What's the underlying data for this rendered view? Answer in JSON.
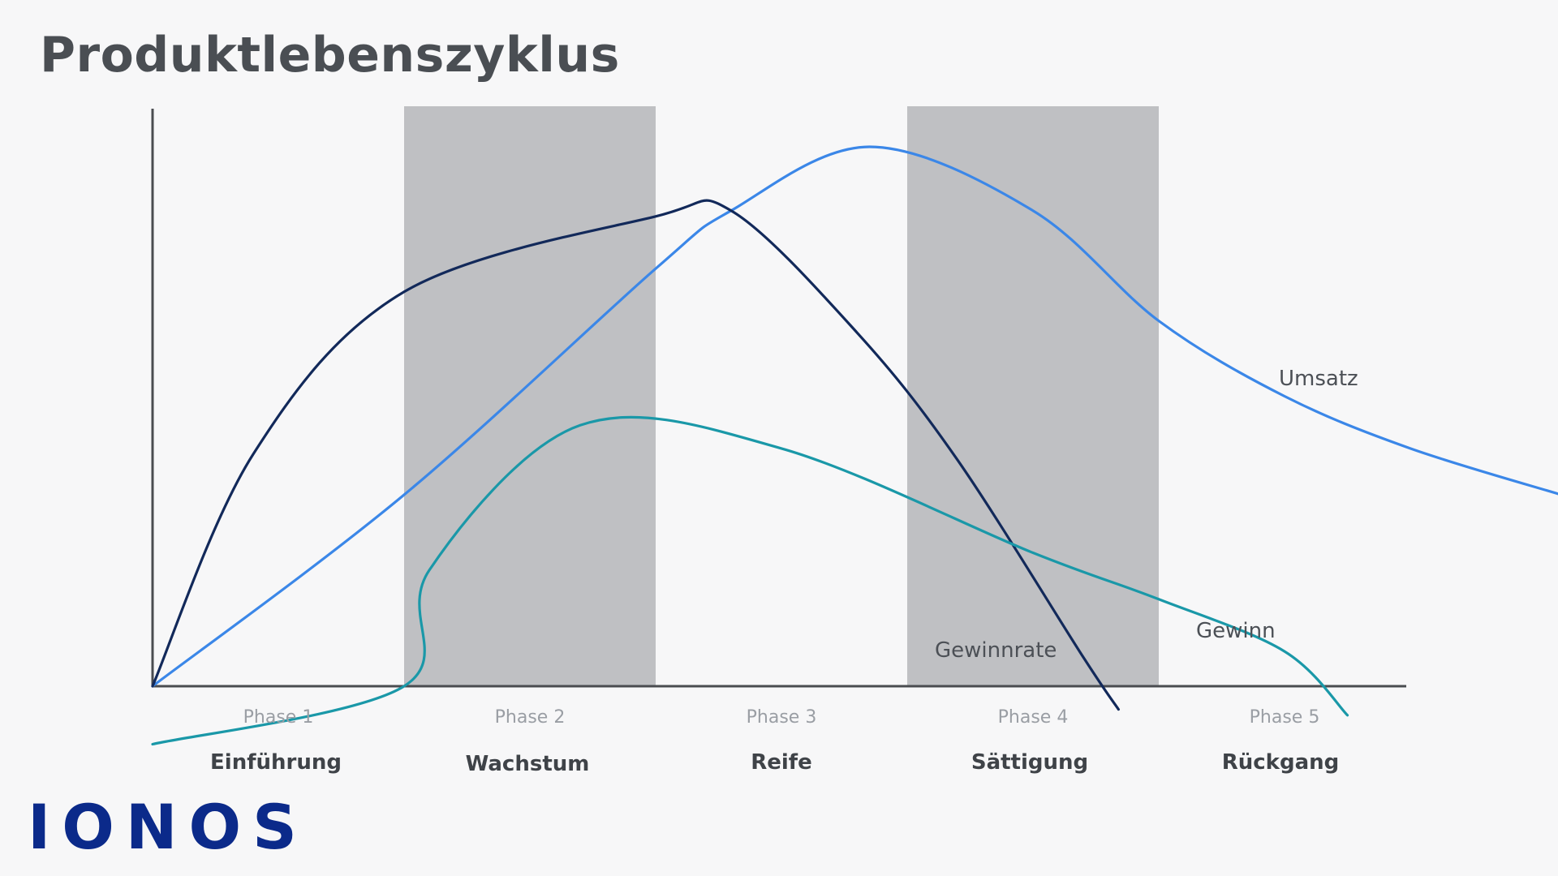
{
  "chart_data": {
    "type": "line",
    "title": "Produktlebenszyklus",
    "xlabel": "",
    "ylabel": "",
    "grid": false,
    "legend": "none",
    "x_range": [
      0,
      5
    ],
    "y_range": [
      -0.1,
      1
    ],
    "phases": [
      {
        "label": "Phase 1",
        "name": "Einführung",
        "shaded": false
      },
      {
        "label": "Phase 2",
        "name": "Wachstum",
        "shaded": true
      },
      {
        "label": "Phase 3",
        "name": "Reife",
        "shaded": false
      },
      {
        "label": "Phase 4",
        "name": "Sättigung",
        "shaded": true
      },
      {
        "label": "Phase 5",
        "name": "Rückgang",
        "shaded": false
      }
    ],
    "series": [
      {
        "name": "Umsatz",
        "color": "#3b87e8",
        "points": [
          [
            0,
            0
          ],
          [
            1,
            0.33
          ],
          [
            2,
            0.72
          ],
          [
            2.3,
            0.82
          ],
          [
            2.85,
            0.93
          ],
          [
            3.5,
            0.82
          ],
          [
            4,
            0.63
          ],
          [
            4.5,
            0.5
          ],
          [
            5,
            0.41
          ],
          [
            5.6,
            0.33
          ]
        ]
      },
      {
        "name": "Gewinnrate",
        "color": "#12295a",
        "points": [
          [
            0,
            0
          ],
          [
            0.4,
            0.4
          ],
          [
            1,
            0.68
          ],
          [
            2,
            0.81
          ],
          [
            2.3,
            0.82
          ],
          [
            2.8,
            0.61
          ],
          [
            3.2,
            0.39
          ],
          [
            3.7,
            0.05
          ],
          [
            3.84,
            -0.04
          ]
        ]
      },
      {
        "name": "Gewinn",
        "color": "#1a98a8",
        "points": [
          [
            0,
            -0.1
          ],
          [
            1,
            0
          ],
          [
            1.1,
            0.2
          ],
          [
            1.7,
            0.45
          ],
          [
            2.5,
            0.41
          ],
          [
            3.5,
            0.23
          ],
          [
            4,
            0.15
          ],
          [
            4.5,
            0.06
          ],
          [
            4.75,
            -0.05
          ]
        ]
      }
    ],
    "colors": {
      "axis": "#4a4c50",
      "phase_band": "#bfc0c3",
      "background": "#f7f7f8"
    }
  },
  "brand": {
    "logo_text": "IONOS",
    "logo_color": "#0b2a8a"
  }
}
